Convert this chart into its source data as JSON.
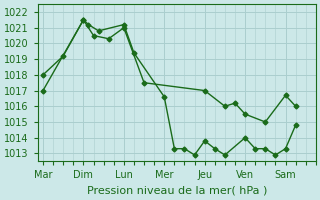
{
  "xlabel": "Pression niveau de la mer( hPa )",
  "bg_color": "#cce8e8",
  "grid_color": "#aacece",
  "line_color": "#1a6b1a",
  "ylim": [
    1012.5,
    1022.5
  ],
  "yticks": [
    1013,
    1014,
    1015,
    1016,
    1017,
    1018,
    1019,
    1020,
    1021,
    1022
  ],
  "day_labels": [
    "Mar",
    "Dim",
    "Lun",
    "Mer",
    "Jeu",
    "Ven",
    "Sam"
  ],
  "day_positions": [
    0,
    8,
    16,
    24,
    32,
    40,
    48
  ],
  "xlim": [
    -1,
    54
  ],
  "line1_x": [
    0,
    8,
    9,
    11,
    16,
    18,
    24,
    26,
    28,
    30,
    32,
    34,
    36,
    40,
    42,
    44,
    46,
    48,
    50
  ],
  "line1_y": [
    1017.0,
    1021.5,
    1021.2,
    1020.8,
    1021.2,
    1019.4,
    1016.6,
    1013.3,
    1013.3,
    1012.9,
    1013.8,
    1013.3,
    1012.9,
    1014.0,
    1013.3,
    1013.3,
    1012.9,
    1013.3,
    1014.8
  ],
  "line2_x": [
    0,
    4,
    8,
    10,
    13,
    16,
    20,
    32,
    36,
    38,
    40,
    44,
    48,
    50
  ],
  "line2_y": [
    1018.0,
    1019.2,
    1021.5,
    1020.5,
    1020.3,
    1021.0,
    1017.5,
    1017.0,
    1016.0,
    1016.2,
    1015.5,
    1015.0,
    1016.7,
    1016.0
  ]
}
